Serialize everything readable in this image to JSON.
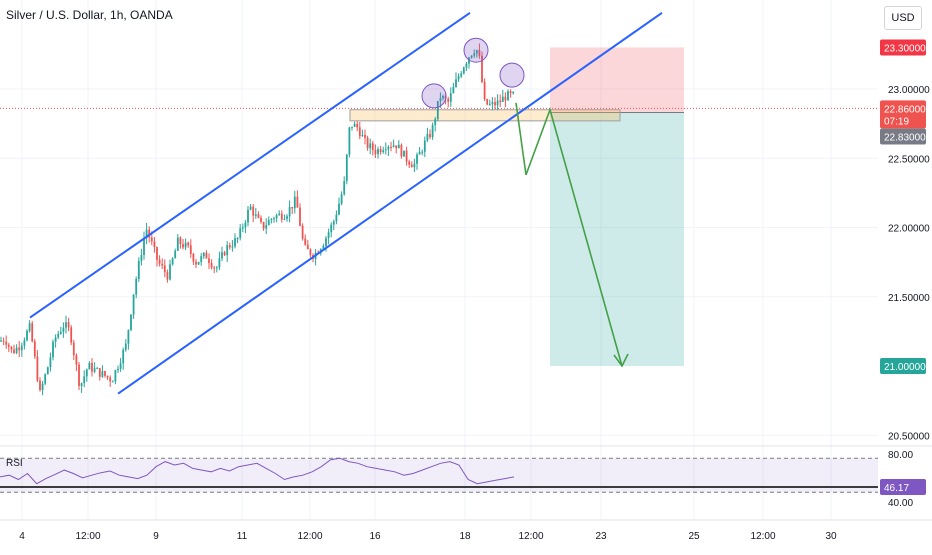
{
  "header": {
    "title": "Silver / U.S. Dollar, 1h, OANDA",
    "currency": "USD"
  },
  "colors": {
    "up": "#26a69a",
    "down": "#ef5350",
    "channel": "#2962ff",
    "projection": "#43a047",
    "target": "#26a69a",
    "stop": "#f23645",
    "rsi": "#7e57c2"
  },
  "price_labels": {
    "stop": "23.30000",
    "current": "22.86000",
    "countdown": "07:19",
    "entry": "22.83000",
    "target": "21.00000",
    "rsi_value": "46.17",
    "rsi_upper": "80.00",
    "rsi_lower": "40.00"
  },
  "rsi_label": "RSI",
  "chart_data": {
    "type": "candlestick",
    "symbol": "XAGUSD",
    "timeframe": "1h",
    "y_ticks": [
      "23.00000",
      "22.50000",
      "22.00000",
      "21.50000",
      "20.50000"
    ],
    "y_tick_values": [
      23.0,
      22.5,
      22.0,
      21.5,
      20.5
    ],
    "ylim": [
      20.5,
      23.3
    ],
    "x_ticks": [
      "4",
      "12:00",
      "9",
      "11",
      "12:00",
      "16",
      "18",
      "12:00",
      "23",
      "25",
      "12:00",
      "30"
    ],
    "ohlc_path": [
      [
        0,
        21.18
      ],
      [
        5,
        21.2
      ],
      [
        12,
        21.1
      ],
      [
        20,
        21.15
      ],
      [
        30,
        21.28
      ],
      [
        40,
        20.8
      ],
      [
        48,
        21.0
      ],
      [
        55,
        21.2
      ],
      [
        64,
        21.3
      ],
      [
        70,
        21.25
      ],
      [
        80,
        20.85
      ],
      [
        88,
        21.0
      ],
      [
        100,
        20.95
      ],
      [
        112,
        20.9
      ],
      [
        126,
        21.15
      ],
      [
        134,
        21.55
      ],
      [
        146,
        22.0
      ],
      [
        158,
        21.75
      ],
      [
        168,
        21.65
      ],
      [
        178,
        21.9
      ],
      [
        188,
        21.85
      ],
      [
        196,
        21.75
      ],
      [
        206,
        21.8
      ],
      [
        216,
        21.7
      ],
      [
        226,
        21.85
      ],
      [
        238,
        21.92
      ],
      [
        250,
        22.15
      ],
      [
        262,
        22.0
      ],
      [
        274,
        22.08
      ],
      [
        286,
        22.1
      ],
      [
        296,
        22.2
      ],
      [
        304,
        21.85
      ],
      [
        314,
        21.8
      ],
      [
        324,
        21.9
      ],
      [
        334,
        22.05
      ],
      [
        344,
        22.3
      ],
      [
        350,
        22.75
      ],
      [
        358,
        22.72
      ],
      [
        366,
        22.6
      ],
      [
        376,
        22.55
      ],
      [
        386,
        22.6
      ],
      [
        396,
        22.6
      ],
      [
        406,
        22.5
      ],
      [
        414,
        22.45
      ],
      [
        424,
        22.6
      ],
      [
        432,
        22.7
      ],
      [
        440,
        22.95
      ],
      [
        448,
        22.9
      ],
      [
        456,
        23.05
      ],
      [
        462,
        23.15
      ],
      [
        470,
        23.25
      ],
      [
        476,
        23.3
      ],
      [
        480,
        23.2
      ],
      [
        484,
        22.9
      ],
      [
        490,
        22.88
      ],
      [
        498,
        22.9
      ],
      [
        506,
        22.95
      ],
      [
        514,
        22.95
      ]
    ],
    "channel": {
      "upper": [
        [
          30,
          21.35
        ],
        [
          470,
          23.55
        ]
      ],
      "lower": [
        [
          118,
          20.8
        ],
        [
          662,
          23.55
        ]
      ]
    },
    "resistance_zone": {
      "from_x": 350,
      "to_x": 620,
      "y_top": 22.85,
      "y_bottom": 22.77
    },
    "circles": [
      [
        434,
        22.95
      ],
      [
        476,
        23.28
      ],
      [
        512,
        23.1
      ]
    ],
    "projection_path": [
      [
        516,
        22.9
      ],
      [
        526,
        22.38
      ],
      [
        550,
        22.85
      ],
      [
        622,
        21.0
      ]
    ],
    "position": {
      "entry": 22.83,
      "stop": 23.3,
      "target": 21.0,
      "x_start": 550,
      "x_end": 684
    },
    "rsi": {
      "upper_band": 80.0,
      "lower_band": 40.0,
      "current": 46.17,
      "series": [
        58,
        60,
        55,
        62,
        50,
        56,
        61,
        66,
        62,
        57,
        60,
        63,
        65,
        60,
        58,
        56,
        60,
        70,
        76,
        72,
        74,
        68,
        66,
        64,
        68,
        65,
        70,
        72,
        74,
        68,
        62,
        55,
        58,
        60,
        64,
        70,
        78,
        80,
        76,
        74,
        70,
        68,
        66,
        64,
        60,
        62,
        66,
        70,
        74,
        76,
        72,
        55,
        50,
        52,
        54,
        56,
        58
      ]
    }
  }
}
